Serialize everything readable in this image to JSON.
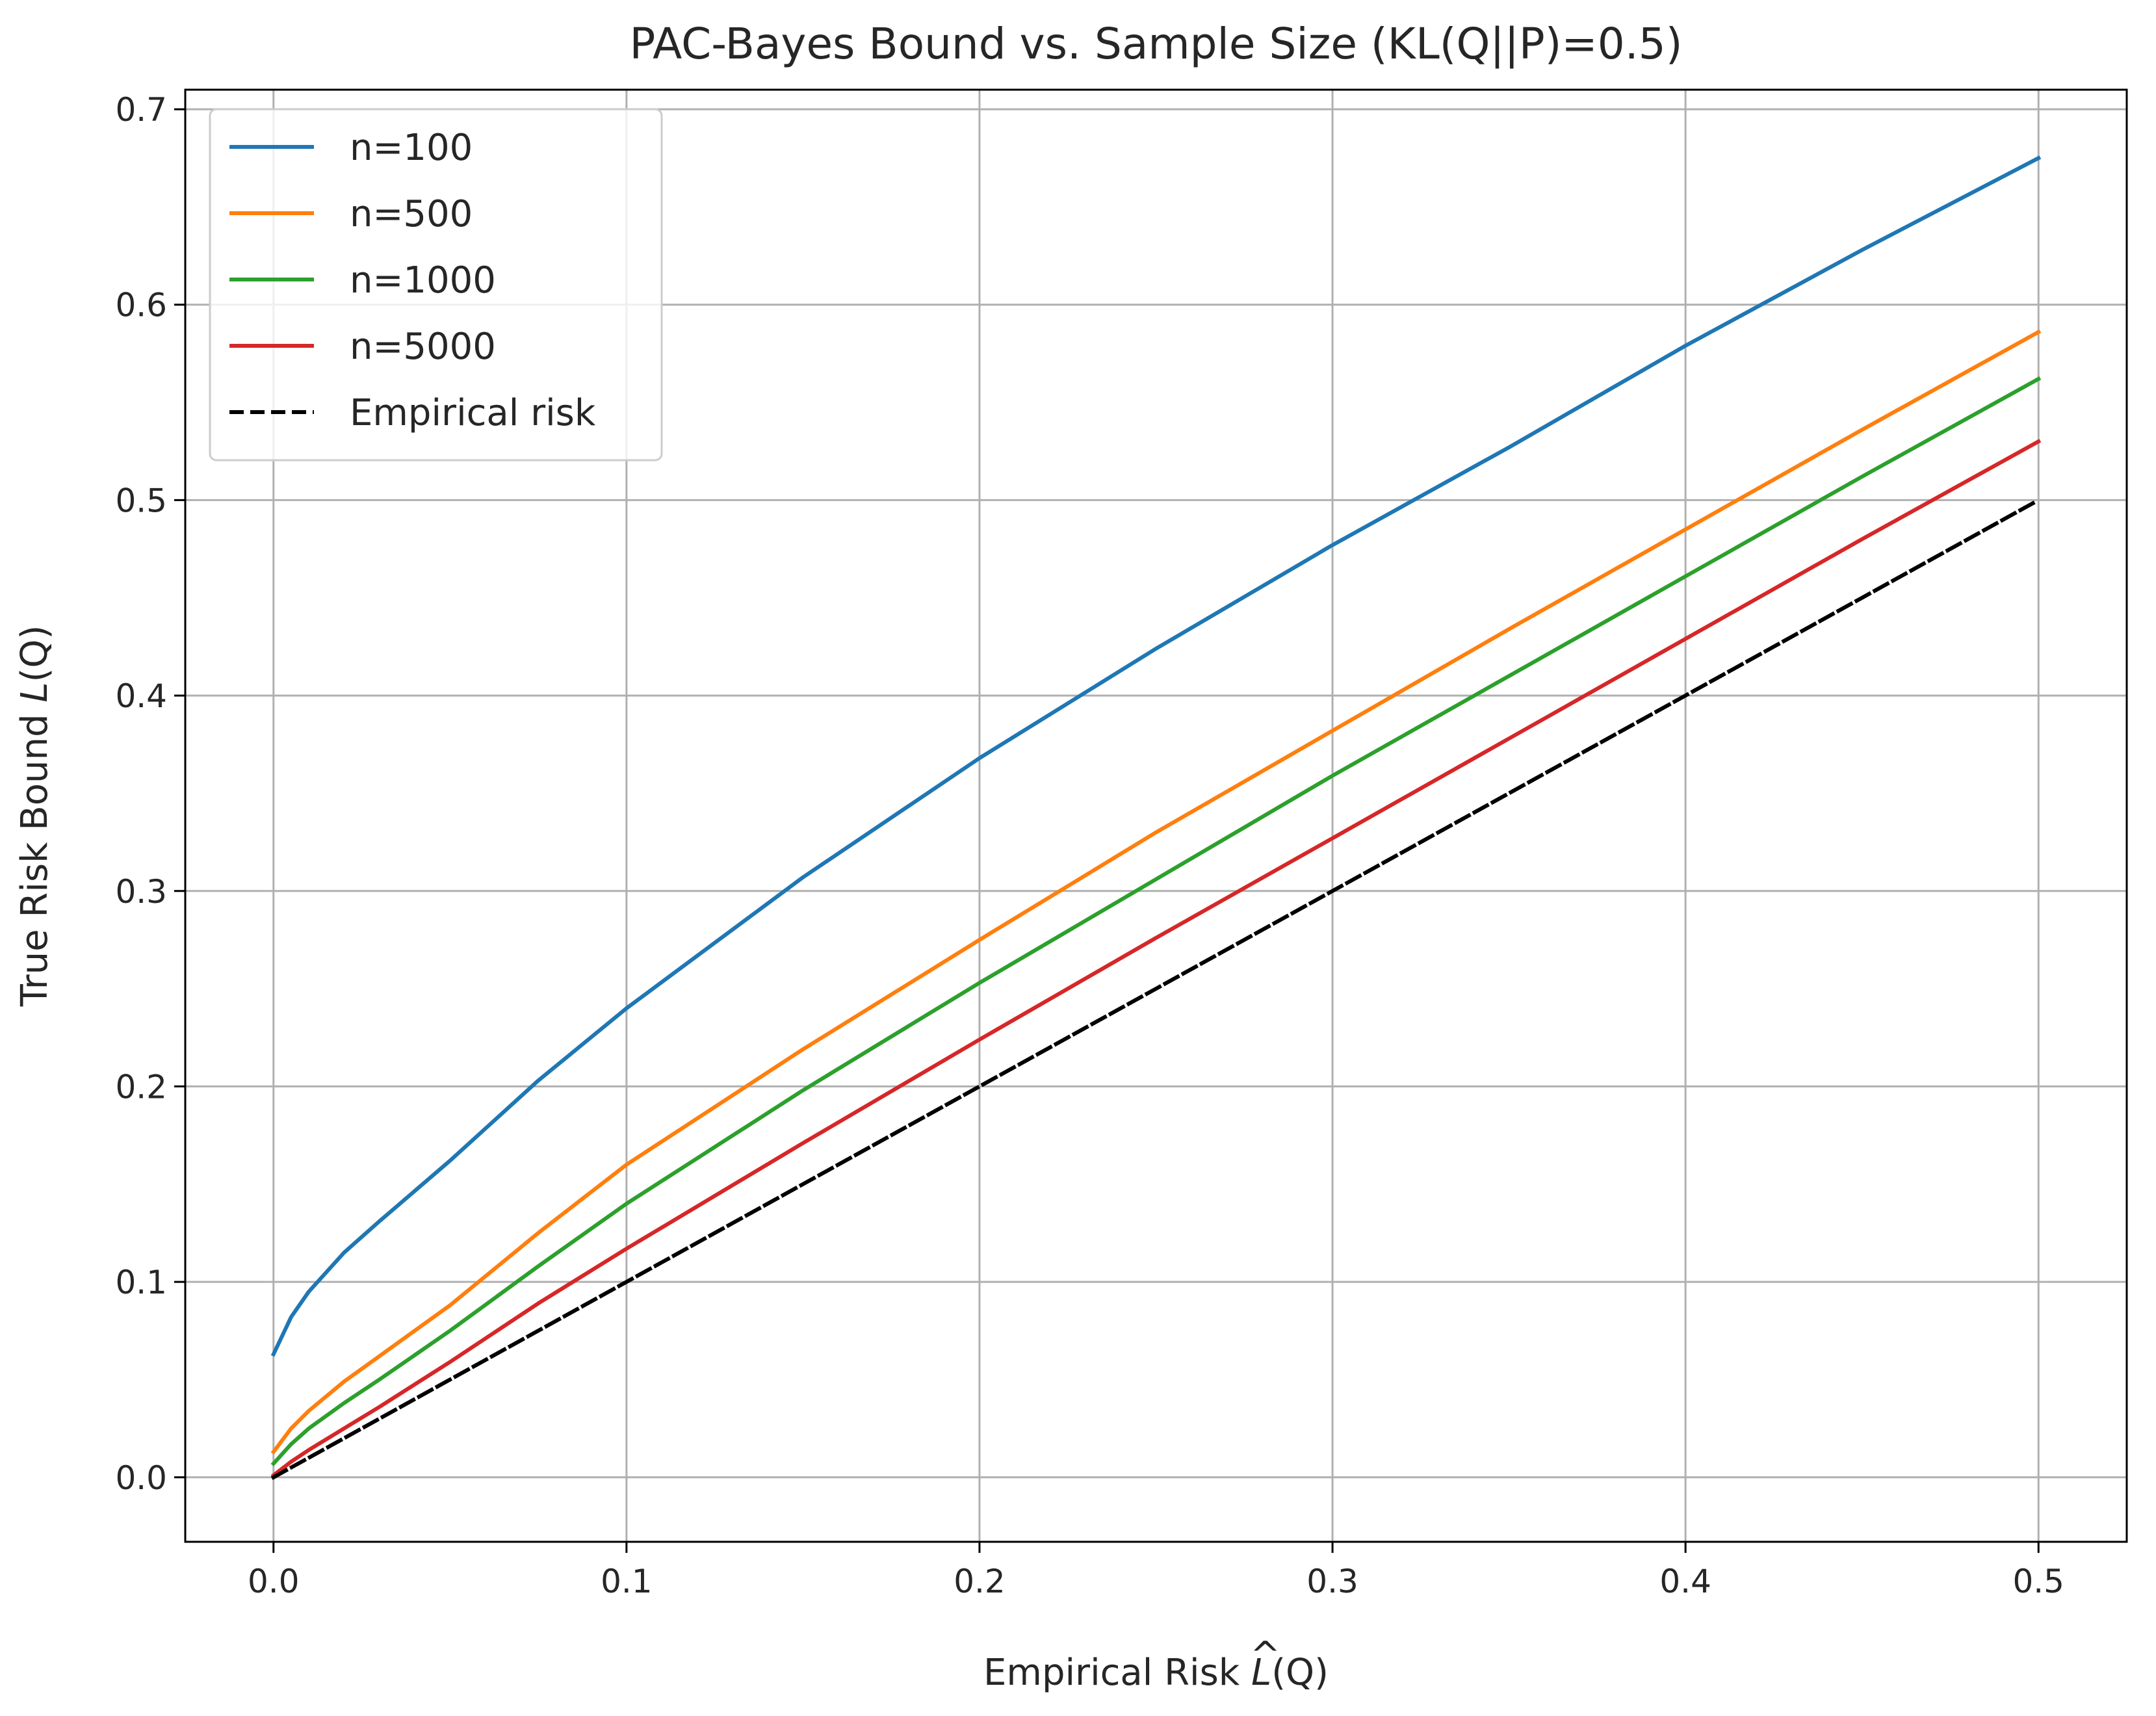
{
  "chart_data": {
    "type": "line",
    "title": "PAC-Bayes Bound vs. Sample Size (KL(Q||P)=0.5)",
    "xlabel": {
      "prefix": "Empirical Risk ",
      "symbol": "L",
      "hat": "^",
      "suffix": "(Q)"
    },
    "ylabel": {
      "prefix": "True Risk Bound ",
      "symbol": "L",
      "suffix": "(Q)"
    },
    "xlim": [
      -0.025,
      0.525
    ],
    "ylim": [
      -0.033,
      0.71
    ],
    "xticks": [
      {
        "value": 0.0,
        "label": "0.0"
      },
      {
        "value": 0.1,
        "label": "0.1"
      },
      {
        "value": 0.2,
        "label": "0.2"
      },
      {
        "value": 0.3,
        "label": "0.3"
      },
      {
        "value": 0.4,
        "label": "0.4"
      },
      {
        "value": 0.5,
        "label": "0.5"
      }
    ],
    "yticks": [
      {
        "value": 0.0,
        "label": "0.0"
      },
      {
        "value": 0.1,
        "label": "0.1"
      },
      {
        "value": 0.2,
        "label": "0.2"
      },
      {
        "value": 0.3,
        "label": "0.3"
      },
      {
        "value": 0.4,
        "label": "0.4"
      },
      {
        "value": 0.5,
        "label": "0.5"
      },
      {
        "value": 0.6,
        "label": "0.6"
      },
      {
        "value": 0.7,
        "label": "0.7"
      }
    ],
    "grid": true,
    "legend_position": "top-left",
    "x": [
      0.0,
      0.005,
      0.01,
      0.02,
      0.03,
      0.05,
      0.075,
      0.1,
      0.15,
      0.2,
      0.25,
      0.3,
      0.35,
      0.4,
      0.45,
      0.5
    ],
    "series": [
      {
        "name": "n=100",
        "color": "#1f77b4",
        "dash": "solid",
        "values": [
          0.063,
          0.082,
          0.095,
          0.115,
          0.131,
          0.162,
          0.203,
          0.24,
          0.307,
          0.368,
          0.424,
          0.477,
          0.527,
          0.579,
          0.628,
          0.675
        ]
      },
      {
        "name": "n=500",
        "color": "#ff7f0e",
        "dash": "solid",
        "values": [
          0.013,
          0.025,
          0.034,
          0.049,
          0.062,
          0.088,
          0.125,
          0.16,
          0.219,
          0.275,
          0.33,
          0.382,
          0.434,
          0.485,
          0.536,
          0.586
        ]
      },
      {
        "name": "n=1000",
        "color": "#2ca02c",
        "dash": "solid",
        "values": [
          0.007,
          0.017,
          0.025,
          0.038,
          0.05,
          0.075,
          0.108,
          0.14,
          0.198,
          0.253,
          0.306,
          0.359,
          0.41,
          0.461,
          0.512,
          0.562
        ]
      },
      {
        "name": "n=5000",
        "color": "#d62728",
        "dash": "solid",
        "values": [
          0.001,
          0.008,
          0.014,
          0.025,
          0.036,
          0.059,
          0.089,
          0.117,
          0.171,
          0.224,
          0.276,
          0.327,
          0.378,
          0.429,
          0.48,
          0.53
        ]
      },
      {
        "name": "Empirical risk",
        "color": "#000000",
        "dash": "dashed",
        "values": [
          0.0,
          0.005,
          0.01,
          0.02,
          0.03,
          0.05,
          0.075,
          0.1,
          0.15,
          0.2,
          0.25,
          0.3,
          0.35,
          0.4,
          0.45,
          0.5
        ]
      }
    ]
  }
}
